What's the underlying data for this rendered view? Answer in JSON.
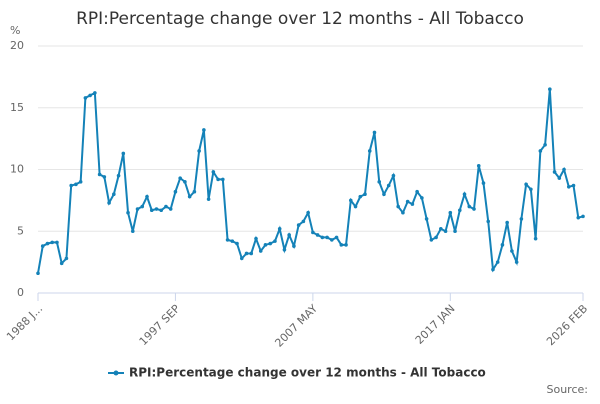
{
  "chart_data": {
    "type": "line",
    "title": "RPI:Percentage change over 12 months - All Tobacco",
    "y_label": "%",
    "source": "Source:",
    "categories": [
      "1988 J...",
      null,
      null,
      null,
      null,
      null,
      null,
      null,
      null,
      null,
      null,
      null,
      null,
      null,
      null,
      null,
      null,
      null,
      null,
      null,
      null,
      null,
      null,
      null,
      null,
      null,
      null,
      null,
      null,
      "1997 SEP",
      null,
      null,
      null,
      null,
      null,
      null,
      null,
      null,
      null,
      null,
      null,
      null,
      null,
      null,
      null,
      null,
      null,
      null,
      null,
      null,
      null,
      null,
      null,
      null,
      null,
      null,
      null,
      null,
      "2007 MAY",
      null,
      null,
      null,
      null,
      null,
      null,
      null,
      null,
      null,
      null,
      null,
      null,
      null,
      null,
      null,
      null,
      null,
      null,
      null,
      null,
      null,
      null,
      null,
      null,
      null,
      null,
      null,
      null,
      "2017 JAN",
      null,
      null,
      null,
      null,
      null,
      null,
      null,
      null,
      null,
      null,
      null,
      null,
      null,
      null,
      null,
      null,
      null,
      null,
      null,
      null,
      null,
      null,
      null,
      null,
      null,
      null,
      null,
      "2026 FEB"
    ],
    "series": [
      {
        "name": "RPI:Percentage change over 12 months - All Tobacco",
        "color": "#1482b8",
        "values": [
          1.6,
          3.8,
          4.0,
          4.1,
          4.1,
          2.4,
          2.8,
          8.7,
          8.8,
          9.0,
          15.8,
          16.0,
          16.2,
          9.6,
          9.4,
          7.3,
          8.0,
          9.5,
          11.3,
          6.5,
          5.0,
          6.8,
          7.0,
          7.8,
          6.7,
          6.8,
          6.7,
          7.0,
          6.8,
          8.2,
          9.3,
          9.0,
          7.8,
          8.2,
          11.5,
          13.2,
          7.6,
          9.8,
          9.2,
          9.2,
          4.3,
          4.2,
          4.0,
          2.8,
          3.2,
          3.2,
          4.4,
          3.4,
          3.9,
          4.0,
          4.2,
          5.2,
          3.5,
          4.7,
          3.8,
          5.5,
          5.8,
          6.5,
          4.9,
          4.7,
          4.5,
          4.5,
          4.3,
          4.5,
          3.9,
          3.9,
          7.5,
          7.0,
          7.8,
          8.0,
          11.5,
          13.0,
          9.0,
          8.0,
          8.7,
          9.5,
          7.0,
          6.5,
          7.4,
          7.2,
          8.2,
          7.7,
          6.0,
          4.3,
          4.5,
          5.2,
          5.0,
          6.5,
          5.0,
          6.7,
          8.0,
          7.0,
          6.8,
          10.3,
          8.9,
          5.8,
          1.9,
          2.5,
          3.9,
          5.7,
          3.4,
          2.5,
          6.0,
          8.8,
          8.4,
          4.4,
          11.5,
          12.0,
          16.5,
          9.8,
          9.3,
          10.0,
          8.6,
          8.7,
          6.1,
          6.2
        ]
      }
    ],
    "ylim": [
      0,
      20
    ],
    "yticks": [
      0,
      5,
      10,
      15,
      20
    ],
    "grid": true
  }
}
